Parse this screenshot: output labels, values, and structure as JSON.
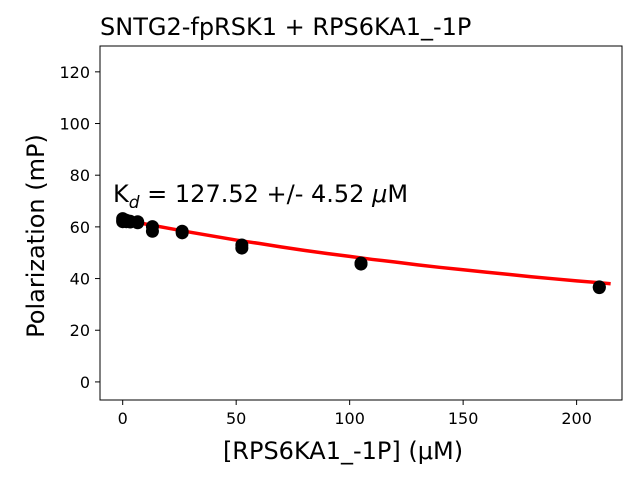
{
  "chart_data": {
    "type": "scatter",
    "title": "SNTG2-fpRSK1 + RPS6KA1_-1P",
    "xlabel": "[RPS6KA1_-1P] (μM)",
    "ylabel": "Polarization (mP)",
    "xlim": [
      -10,
      220
    ],
    "ylim": [
      -7,
      130
    ],
    "xticks": [
      0,
      50,
      100,
      150,
      200
    ],
    "yticks": [
      0,
      20,
      40,
      60,
      80,
      100,
      120
    ],
    "grid": false,
    "annotation": {
      "kd_prefix": "K",
      "kd_subscript": "d",
      "kd_value_text": " = 127.52 +/- 4.52 ",
      "kd_unit_mu": "μ",
      "kd_unit_rest": "M"
    },
    "fit": {
      "color": "#ff0000",
      "x": [
        0,
        10,
        20,
        30,
        40,
        50,
        60,
        70,
        80,
        90,
        100,
        110,
        120,
        130,
        140,
        150,
        160,
        170,
        180,
        190,
        200,
        210,
        215
      ],
      "y": [
        62.8,
        61.1,
        59.5,
        57.9,
        56.4,
        54.9,
        53.6,
        52.2,
        50.9,
        49.7,
        48.6,
        47.4,
        46.4,
        45.3,
        44.3,
        43.4,
        42.5,
        41.6,
        40.7,
        39.9,
        39.1,
        38.4,
        38.0
      ]
    },
    "points": {
      "color": "#000000",
      "x": [
        0,
        0,
        0,
        1.6,
        1.6,
        3.3,
        3.3,
        6.6,
        6.6,
        13.1,
        13.1,
        26.2,
        26.2,
        52.5,
        52.5,
        105,
        105,
        210,
        210
      ],
      "y": [
        63.2,
        62.0,
        62.4,
        62.6,
        62.0,
        62.2,
        61.9,
        62.0,
        61.6,
        60.1,
        58.3,
        58.3,
        57.7,
        53.0,
        51.8,
        46.0,
        45.6,
        36.8,
        36.5
      ]
    }
  }
}
